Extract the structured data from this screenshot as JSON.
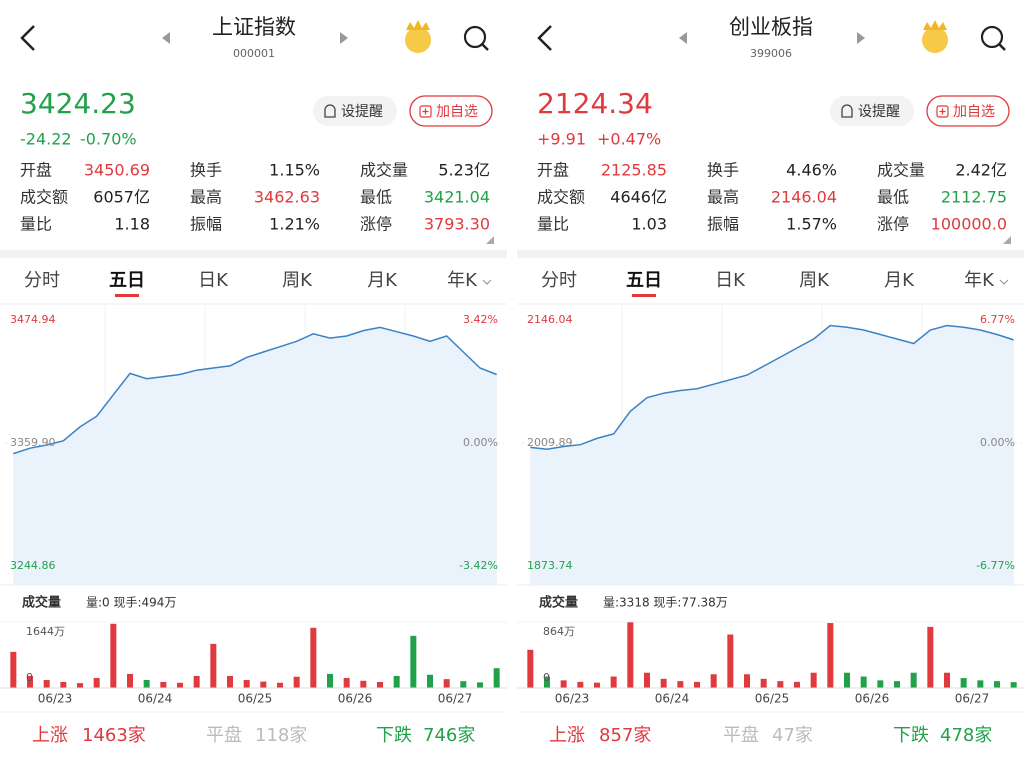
{
  "panels": [
    {
      "title": "上证指数",
      "code": "000001",
      "price": "3424.23",
      "change": "-24.22",
      "change_pct": "-0.70%",
      "alert_button": "设提醒",
      "watch_button": "加自选",
      "stats": [
        {
          "label": "开盘",
          "value": "3450.69"
        },
        {
          "label": "换手",
          "value": "1.15%"
        },
        {
          "label": "成交量",
          "value": "5.23亿"
        },
        {
          "label": "成交额",
          "value": "6057亿"
        },
        {
          "label": "最高",
          "value": "3462.63"
        },
        {
          "label": "最低",
          "value": "3421.04"
        },
        {
          "label": "量比",
          "value": "1.18"
        },
        {
          "label": "振幅",
          "value": "1.21%"
        },
        {
          "label": "涨停",
          "value": "3793.30"
        }
      ],
      "tabs": [
        "分时",
        "五日",
        "日K",
        "周K",
        "月K",
        "年K"
      ],
      "chart": {
        "price_top": "3474.94",
        "price_mid": "3359.90",
        "price_bottom": "3244.86",
        "pct_top": "3.42%",
        "pct_mid": "0.00%",
        "pct_bottom": "-3.42%",
        "price_series": [
          3350,
          3355,
          3358,
          3362,
          3375,
          3385,
          3405,
          3425,
          3420,
          3422,
          3424,
          3428,
          3430,
          3432,
          3440,
          3445,
          3450,
          3455,
          3462,
          3458,
          3460,
          3465,
          3468,
          3464,
          3460,
          3455,
          3460,
          3445,
          3430,
          3424
        ]
      },
      "volume": {
        "title": "成交量",
        "info": "量:0 现手:494万",
        "top_label": "1644万",
        "bottom_label": "0",
        "series": [
          900,
          300,
          200,
          150,
          120,
          250,
          1600,
          350,
          200,
          150,
          130,
          300,
          1100,
          300,
          200,
          160,
          130,
          280,
          1500,
          350,
          250,
          180,
          150,
          300,
          1300,
          330,
          220,
          170,
          140,
          494
        ],
        "dates": [
          "06/23",
          "06/24",
          "06/25",
          "06/26",
          "06/27"
        ]
      },
      "footer": {
        "up_label": "上涨",
        "up_count": "1463家",
        "flat_label": "平盘",
        "flat_count": "118家",
        "down_label": "下跌",
        "down_count": "746家"
      }
    },
    {
      "title": "创业板指",
      "code": "399006",
      "price": "2124.34",
      "change": "+9.91",
      "change_pct": "+0.47%",
      "alert_button": "设提醒",
      "watch_button": "加自选",
      "stats": [
        {
          "label": "开盘",
          "value": "2125.85"
        },
        {
          "label": "换手",
          "value": "4.46%"
        },
        {
          "label": "成交量",
          "value": "2.42亿"
        },
        {
          "label": "成交额",
          "value": "4646亿"
        },
        {
          "label": "最高",
          "value": "2146.04"
        },
        {
          "label": "最低",
          "value": "2112.75"
        },
        {
          "label": "量比",
          "value": "1.03"
        },
        {
          "label": "振幅",
          "value": "1.57%"
        },
        {
          "label": "涨停",
          "value": "100000.0"
        }
      ],
      "tabs": [
        "分时",
        "五日",
        "日K",
        "周K",
        "月K",
        "年K"
      ],
      "chart": {
        "price_top": "2146.04",
        "price_mid": "2009.89",
        "price_bottom": "1873.74",
        "pct_top": "6.77%",
        "pct_mid": "0.00%",
        "pct_bottom": "-6.77%",
        "price_series": [
          2005,
          2003,
          2006,
          2008,
          2015,
          2020,
          2045,
          2060,
          2065,
          2068,
          2070,
          2075,
          2080,
          2085,
          2095,
          2105,
          2115,
          2125,
          2140,
          2138,
          2135,
          2130,
          2125,
          2120,
          2135,
          2140,
          2138,
          2135,
          2130,
          2124
        ]
      },
      "volume": {
        "title": "成交量",
        "info": "量:3318 现手:77.38万",
        "top_label": "864万",
        "bottom_label": "0",
        "series": [
          500,
          150,
          100,
          80,
          70,
          150,
          860,
          200,
          120,
          90,
          80,
          180,
          700,
          180,
          120,
          90,
          80,
          200,
          850,
          200,
          150,
          100,
          90,
          200,
          800,
          200,
          130,
          100,
          90,
          77
        ],
        "dates": [
          "06/23",
          "06/24",
          "06/25",
          "06/26",
          "06/27"
        ]
      },
      "footer": {
        "up_label": "上涨",
        "up_count": "857家",
        "flat_label": "平盘",
        "flat_count": "47家",
        "down_label": "下跌",
        "down_count": "478家"
      }
    }
  ]
}
